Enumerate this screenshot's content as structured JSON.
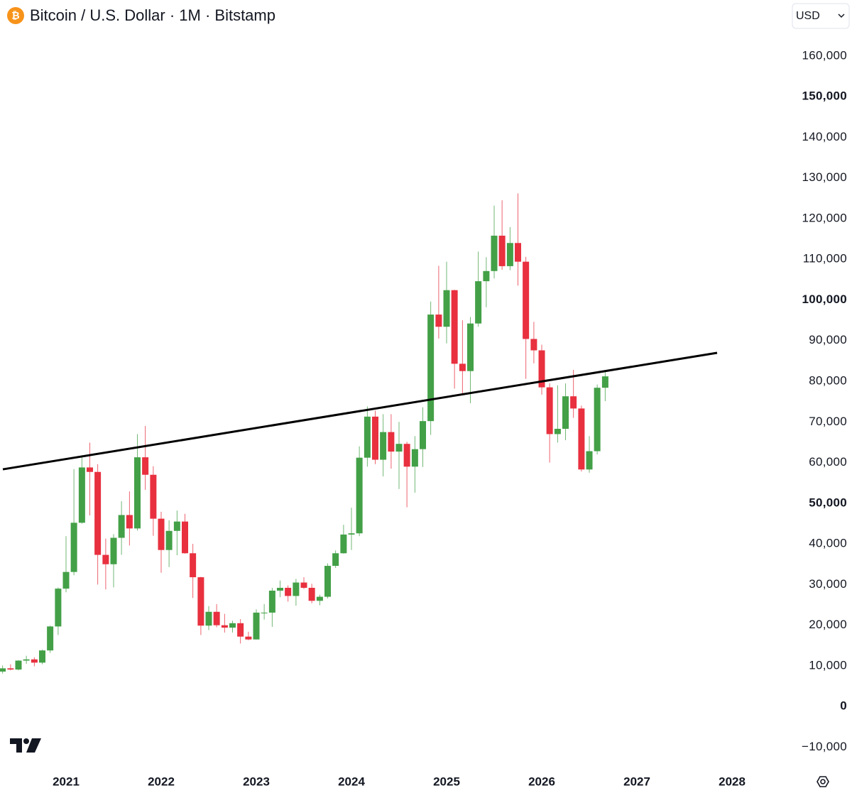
{
  "chart_data": {
    "type": "candlestick",
    "title": "Bitcoin / U.S. Dollar · 1M · Bitstamp",
    "currency": "USD",
    "up_color": "#43a047",
    "down_color": "#e8303f",
    "x": [
      2020.333,
      2020.417,
      2020.5,
      2020.583,
      2020.667,
      2020.75,
      2020.833,
      2020.917,
      2021,
      2021.083,
      2021.167,
      2021.25,
      2021.333,
      2021.417,
      2021.5,
      2021.583,
      2021.667,
      2021.75,
      2021.833,
      2021.917,
      2022,
      2022.083,
      2022.167,
      2022.25,
      2022.333,
      2022.417,
      2022.5,
      2022.583,
      2022.667,
      2022.75,
      2022.833,
      2022.917,
      2023,
      2023.083,
      2023.167,
      2023.25,
      2023.333,
      2023.417,
      2023.5,
      2023.583,
      2023.667,
      2023.75,
      2023.833,
      2023.917,
      2024,
      2024.083,
      2024.167,
      2024.25,
      2024.333,
      2024.417,
      2024.5,
      2024.583,
      2024.667,
      2024.75,
      2024.833,
      2024.917,
      2025,
      2025.083,
      2025.167,
      2025.25,
      2025.333,
      2025.417,
      2025.5,
      2025.583,
      2025.667,
      2025.75,
      2025.833,
      2025.917,
      2026,
      2026.083,
      2026.167,
      2026.25,
      2026.333,
      2026.417,
      2026.5,
      2026.583,
      2026.667
    ],
    "open": [
      8600,
      9400,
      9100,
      11300,
      11600,
      10800,
      13800,
      19700,
      29000,
      33100,
      45200,
      58800,
      57700,
      37300,
      35000,
      41500,
      47100,
      43800,
      61300,
      57000,
      46200,
      38500,
      43200,
      45500,
      37700,
      31800,
      19900,
      23300,
      20000,
      19400,
      20500,
      17200,
      16500,
      23100,
      23100,
      28500,
      29200,
      27200,
      30500,
      29200,
      26000,
      27000,
      34600,
      37700,
      42300,
      42600,
      61200,
      71300,
      60700,
      67500,
      62700,
      64600,
      59000,
      63300,
      70200,
      96400,
      93400,
      102400,
      84300,
      82500,
      94200,
      104600,
      107100,
      115800,
      108300,
      114000,
      109400,
      90400,
      87600,
      78500,
      67000,
      68300,
      76300,
      73300,
      58300,
      62800,
      78400
    ],
    "high": [
      10100,
      10400,
      11400,
      12500,
      12100,
      14000,
      19900,
      29300,
      41900,
      58400,
      61800,
      64900,
      59600,
      41300,
      42400,
      50500,
      52900,
      67000,
      69000,
      59100,
      47900,
      45800,
      48200,
      47400,
      40000,
      31900,
      24700,
      25200,
      22800,
      21100,
      21500,
      18400,
      23900,
      25200,
      29200,
      31000,
      29800,
      31400,
      31800,
      30200,
      27500,
      35200,
      38400,
      44700,
      48900,
      64000,
      73800,
      72800,
      71900,
      71900,
      70000,
      65100,
      66500,
      73600,
      99600,
      108400,
      109400,
      102500,
      95000,
      95800,
      111900,
      110500,
      123200,
      124500,
      117900,
      126200,
      110600,
      94600,
      89000,
      79500,
      79000,
      79500,
      82800,
      74000,
      66500,
      79200,
      82600
    ],
    "low": [
      8100,
      8900,
      8900,
      10500,
      9900,
      10400,
      13200,
      17600,
      28100,
      32300,
      45000,
      47000,
      30000,
      28800,
      29300,
      37300,
      39600,
      43300,
      53300,
      42000,
      32900,
      34300,
      37200,
      37600,
      26700,
      17600,
      18800,
      19500,
      18200,
      18200,
      15500,
      16300,
      16500,
      21400,
      19600,
      26900,
      25800,
      24800,
      28900,
      25400,
      24900,
      26600,
      34100,
      37600,
      38500,
      41900,
      59000,
      59600,
      56600,
      58500,
      53500,
      49000,
      52600,
      58900,
      66800,
      90500,
      89300,
      78200,
      76600,
      74600,
      93400,
      98200,
      105300,
      107400,
      107300,
      103500,
      80600,
      84400,
      76700,
      60000,
      64900,
      65500,
      71000,
      57800,
      57500,
      62000,
      75100
    ],
    "close": [
      9400,
      9100,
      11300,
      11600,
      10800,
      13800,
      19700,
      29000,
      33100,
      45200,
      58800,
      57700,
      37300,
      35000,
      41500,
      47100,
      43800,
      61300,
      57000,
      46200,
      38500,
      43200,
      45500,
      37700,
      31800,
      19900,
      23300,
      20000,
      19400,
      20500,
      17200,
      16500,
      23100,
      23100,
      28500,
      29200,
      27200,
      30500,
      29200,
      26000,
      27000,
      34600,
      37700,
      42300,
      42600,
      61200,
      71300,
      60700,
      67500,
      62700,
      64600,
      59000,
      63300,
      70200,
      96400,
      93400,
      102400,
      84300,
      82500,
      94200,
      104600,
      107100,
      115800,
      108300,
      114000,
      109400,
      90400,
      87600,
      78500,
      67000,
      68300,
      76300,
      73300,
      58300,
      62800,
      78400,
      81200
    ],
    "trendline": {
      "color": "#000000",
      "x": [
        2020.336,
        2027.843
      ],
      "y": [
        58340,
        86990
      ]
    },
    "xlim": [
      2020.306,
      2028.552
    ],
    "xticks": [
      2021,
      2022,
      2023,
      2024,
      2025,
      2026,
      2027,
      2028
    ],
    "ylim": [
      -14800,
      165900
    ],
    "yticks": [
      {
        "value": -10000,
        "label": "−10,000"
      },
      {
        "value": 0,
        "label": "0",
        "emphasized": true
      },
      {
        "value": 10000,
        "label": "10,000"
      },
      {
        "value": 20000,
        "label": "20,000"
      },
      {
        "value": 30000,
        "label": "30,000"
      },
      {
        "value": 40000,
        "label": "40,000"
      },
      {
        "value": 50000,
        "label": "50,000",
        "emphasized": true
      },
      {
        "value": 60000,
        "label": "60,000"
      },
      {
        "value": 70000,
        "label": "70,000"
      },
      {
        "value": 80000,
        "label": "80,000"
      },
      {
        "value": 90000,
        "label": "90,000"
      },
      {
        "value": 100000,
        "label": "100,000",
        "emphasized": true
      },
      {
        "value": 110000,
        "label": "110,000"
      },
      {
        "value": 120000,
        "label": "120,000"
      },
      {
        "value": 130000,
        "label": "130,000"
      },
      {
        "value": 140000,
        "label": "140,000"
      },
      {
        "value": 150000,
        "label": "150,000",
        "emphasized": true
      },
      {
        "value": 160000,
        "label": "160,000"
      }
    ]
  }
}
